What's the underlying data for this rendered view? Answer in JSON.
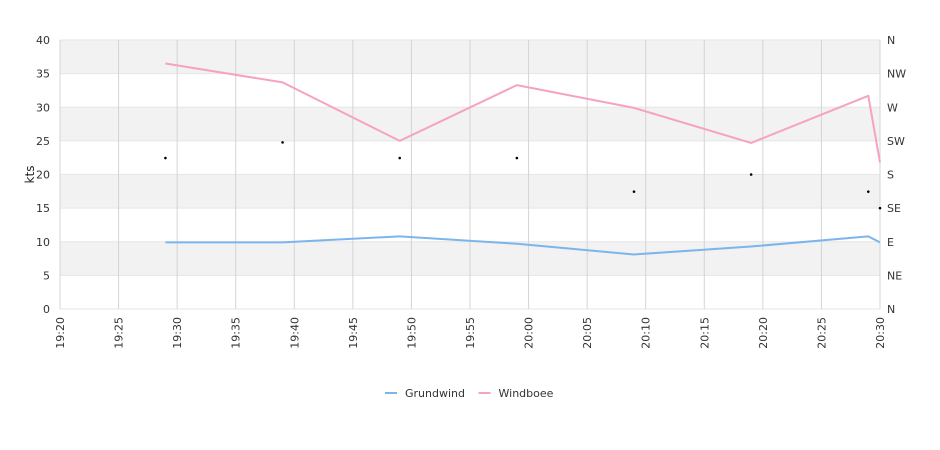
{
  "chart_data": {
    "type": "line",
    "ylabel": "kts",
    "ylim": [
      0,
      40
    ],
    "y_ticks": [
      "0",
      "5",
      "10",
      "15",
      "20",
      "25",
      "30",
      "35",
      "40"
    ],
    "x_ticks": [
      "19:20",
      "19:25",
      "19:30",
      "19:35",
      "19:40",
      "19:45",
      "19:50",
      "19:55",
      "20:00",
      "20:05",
      "20:10",
      "20:15",
      "20:20",
      "20:25",
      "20:30"
    ],
    "xlim": [
      "19:20",
      "20:30"
    ],
    "y2_ticks": [
      "N",
      "NE",
      "E",
      "SE",
      "S",
      "SW",
      "W",
      "NW",
      "N"
    ],
    "y2_ylim": [
      0,
      360
    ],
    "grid": true,
    "legend_position": "bottom-center",
    "series": [
      {
        "name": "Grundwind",
        "color": "#7cb5ec",
        "x": [
          "19:29",
          "19:39",
          "19:49",
          "19:59",
          "20:09",
          "20:19",
          "20:29",
          "20:30"
        ],
        "values": [
          9.9,
          9.9,
          10.8,
          9.7,
          8.1,
          9.3,
          10.8,
          9.9
        ]
      },
      {
        "name": "Windboee",
        "color": "#f7a1c4",
        "x": [
          "19:29",
          "19:39",
          "19:49",
          "19:59",
          "20:09",
          "20:19",
          "20:29",
          "20:30"
        ],
        "values": [
          36.5,
          33.7,
          25.0,
          33.3,
          29.9,
          24.7,
          31.7,
          21.8
        ]
      }
    ],
    "direction": {
      "axis": "right",
      "marker_color": "#000000",
      "x": [
        "19:29",
        "19:39",
        "19:49",
        "19:59",
        "20:09",
        "20:19",
        "20:29",
        "20:30"
      ],
      "values": [
        202,
        223,
        202,
        202,
        157,
        180,
        157,
        135
      ]
    }
  }
}
